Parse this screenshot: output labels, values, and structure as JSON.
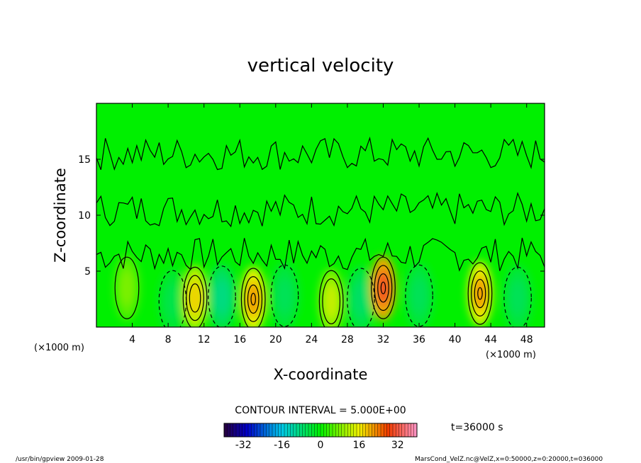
{
  "chart_data": {
    "type": "heatmap",
    "title": "vertical velocity",
    "xlabel": "X-coordinate",
    "ylabel": "Z-coordinate",
    "x_unit_label": "(×1000 m)",
    "x_unit_label_left": "(×1000 m)",
    "xlim": [
      0,
      50
    ],
    "ylim": [
      0,
      20
    ],
    "x_ticks": [
      4,
      8,
      12,
      16,
      20,
      24,
      28,
      32,
      36,
      40,
      44,
      48
    ],
    "y_ticks": [
      5,
      10,
      15
    ],
    "contour_interval_label": "CONTOUR INTERVAL = 5.000E+00",
    "time_label": "t=36000  s",
    "colorbar": {
      "min": -40,
      "max": 40,
      "ticks": [
        -32,
        -16,
        0,
        16,
        32
      ]
    },
    "features": [
      {
        "type": "updraft",
        "x": 3.4,
        "z": 3.5,
        "peak": 8
      },
      {
        "type": "downdraft",
        "x": 8.5,
        "z": 2.3,
        "peak": -5
      },
      {
        "type": "updraft",
        "x": 11.0,
        "z": 2.6,
        "peak": 18
      },
      {
        "type": "downdraft",
        "x": 14.0,
        "z": 2.7,
        "peak": -9
      },
      {
        "type": "updraft",
        "x": 17.5,
        "z": 2.5,
        "peak": 22
      },
      {
        "type": "downdraft",
        "x": 21.0,
        "z": 2.8,
        "peak": -6
      },
      {
        "type": "updraft",
        "x": 26.2,
        "z": 2.3,
        "peak": 13
      },
      {
        "type": "downdraft",
        "x": 29.5,
        "z": 2.5,
        "peak": -7
      },
      {
        "type": "updraft",
        "x": 32.0,
        "z": 3.5,
        "peak": 30
      },
      {
        "type": "downdraft",
        "x": 36.0,
        "z": 2.8,
        "peak": -6
      },
      {
        "type": "updraft",
        "x": 42.8,
        "z": 3.0,
        "peak": 22
      },
      {
        "type": "downdraft",
        "x": 47.0,
        "z": 2.6,
        "peak": -6
      }
    ]
  },
  "footer": {
    "left": "/usr/bin/gpview   2009-01-28",
    "right": "MarsCond_VelZ.nc@VelZ,x=0:50000,z=0:20000,t=036000"
  }
}
